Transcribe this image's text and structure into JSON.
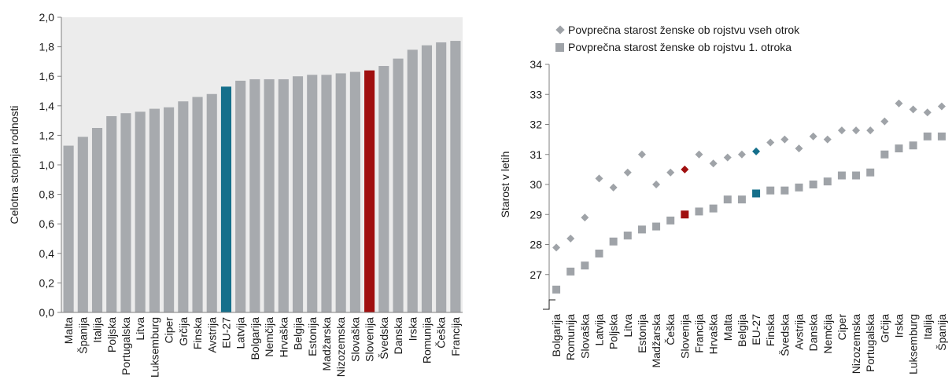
{
  "colors": {
    "bar": "#a7aaae",
    "eu": "#156f8b",
    "slovenia": "#a00f0f",
    "point": "#9fa3a8",
    "plot_bg_left": "#ececec",
    "axis": "#7f7f7f"
  },
  "chart_data": [
    {
      "type": "bar",
      "ylabel": "Celotna stopnja rodnosti",
      "ylim": [
        0,
        2.0
      ],
      "yticks": [
        "0,0",
        "0,2",
        "0,4",
        "0,6",
        "0,8",
        "1,0",
        "1,2",
        "1,4",
        "1,6",
        "1,8",
        "2,0"
      ],
      "highlight": {
        "EU-27": "eu",
        "Slovenija": "slovenia"
      },
      "categories": [
        "Malta",
        "Španija",
        "Italija",
        "Poljska",
        "Portugalska",
        "Litva",
        "Luksemburg",
        "Ciper",
        "Grčija",
        "Finska",
        "Avstrija",
        "EU-27",
        "Latvija",
        "Bolgarija",
        "Nemčija",
        "Hrvaška",
        "Belgija",
        "Estonija",
        "Madžarska",
        "Nizozemska",
        "Slovaška",
        "Slovenija",
        "Švedska",
        "Danska",
        "Irska",
        "Romunija",
        "Češka",
        "Francija"
      ],
      "values": [
        1.13,
        1.19,
        1.25,
        1.33,
        1.35,
        1.36,
        1.38,
        1.39,
        1.43,
        1.46,
        1.48,
        1.53,
        1.57,
        1.58,
        1.58,
        1.58,
        1.6,
        1.61,
        1.61,
        1.62,
        1.63,
        1.64,
        1.67,
        1.72,
        1.78,
        1.81,
        1.83,
        1.84
      ]
    },
    {
      "type": "scatter",
      "ylabel": "Starost v letih",
      "ylim": [
        26,
        34
      ],
      "yticks": [
        "27",
        "28",
        "29",
        "30",
        "31",
        "32",
        "33",
        "34"
      ],
      "axis_break": true,
      "highlight": {
        "EU-27": "eu",
        "Slovenija": "slovenia"
      },
      "categories": [
        "Bolgarija",
        "Romunija",
        "Slovaška",
        "Latvija",
        "Poljska",
        "Litva",
        "Estonija",
        "Madžarska",
        "Češka",
        "Slovenija",
        "Francija",
        "Hrvaška",
        "Malta",
        "Belgija",
        "EU-27",
        "Finska",
        "Švedska",
        "Avstrija",
        "Danska",
        "Nemčija",
        "Ciper",
        "Nizozemska",
        "Portugalska",
        "Grčija",
        "Irska",
        "Luksemburg",
        "Italija",
        "Španija"
      ],
      "series": [
        {
          "name": "Povprečna starost ženske ob rojstvu vseh otrok",
          "marker": "diamond",
          "values": [
            27.9,
            28.2,
            28.9,
            30.2,
            29.9,
            30.4,
            31.0,
            30.0,
            30.4,
            30.5,
            31.0,
            30.7,
            30.9,
            31.0,
            31.1,
            31.4,
            31.5,
            31.2,
            31.6,
            31.5,
            31.8,
            31.8,
            31.8,
            32.1,
            32.7,
            32.5,
            32.4,
            32.6
          ]
        },
        {
          "name": "Povprečna starost ženske ob rojstvu 1. otroka",
          "marker": "square",
          "values": [
            26.5,
            27.1,
            27.3,
            27.7,
            28.1,
            28.3,
            28.5,
            28.6,
            28.8,
            29.0,
            29.1,
            29.2,
            29.5,
            29.5,
            29.7,
            29.8,
            29.8,
            29.9,
            30.0,
            30.1,
            30.3,
            30.3,
            30.4,
            31.0,
            31.2,
            31.3,
            31.6,
            31.6
          ]
        }
      ]
    }
  ]
}
